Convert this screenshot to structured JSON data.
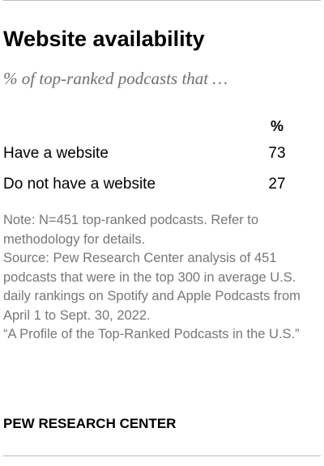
{
  "header": {
    "title": "Website availability",
    "subtitle": "% of top-ranked podcasts that …"
  },
  "chart_data": {
    "type": "table",
    "title": "Website availability",
    "subtitle": "% of top-ranked podcasts that …",
    "columns": [
      "%"
    ],
    "rows": [
      {
        "label": "Have a website",
        "value": 73
      },
      {
        "label": "Do not have a website",
        "value": 27
      }
    ]
  },
  "footer": {
    "note": "Note: N=451 top-ranked podcasts. Refer to methodology for details.",
    "source": "Source: Pew Research Center analysis of 451 podcasts that were in the top 300 in average U.S. daily rankings on Spotify and Apple Podcasts from April 1 to Sept. 30, 2022.",
    "report": "“A Profile of the Top-Ranked Podcasts in the U.S.”",
    "brand": "PEW RESEARCH CENTER"
  },
  "colors": {
    "title": "#000000",
    "subtitle": "#6f6f6f",
    "notes": "#777777",
    "rule": "#bdbdbd"
  }
}
